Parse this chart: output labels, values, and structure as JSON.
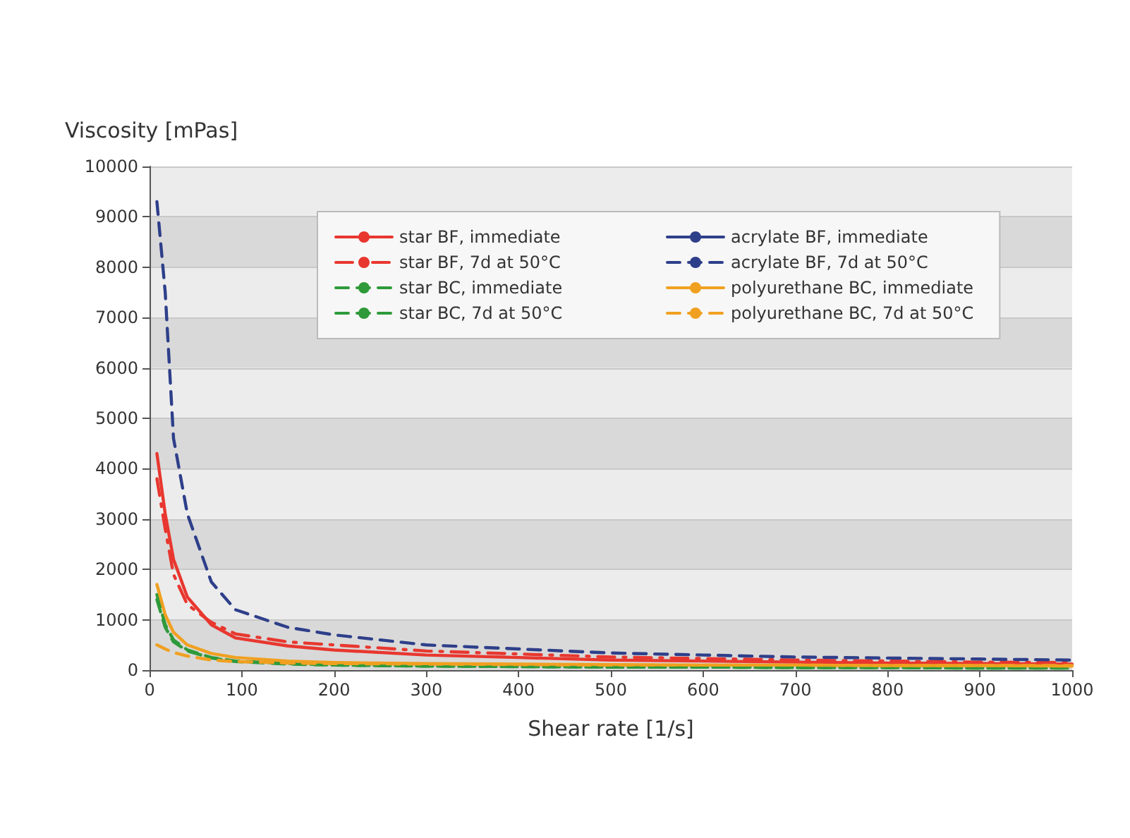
{
  "chart_data": {
    "type": "line",
    "xlabel": "Shear rate [1/s]",
    "ylabel": "Viscosity [mPas]",
    "x": [
      8,
      17,
      26,
      41,
      67,
      93,
      150,
      200,
      300,
      400,
      500,
      600,
      700,
      800,
      900,
      1000
    ],
    "series": [
      {
        "name": "star BF, immediate",
        "color": "#e8372f",
        "line_style": "solid",
        "values": [
          4300,
          3100,
          2200,
          1450,
          900,
          640,
          480,
          400,
          300,
          250,
          200,
          180,
          160,
          140,
          130,
          120
        ]
      },
      {
        "name": "star BF, 7d at 50°C",
        "color": "#e8372f",
        "line_style": "dashdot",
        "values": [
          3800,
          2800,
          1900,
          1300,
          950,
          720,
          560,
          500,
          380,
          320,
          260,
          230,
          200,
          180,
          160,
          150
        ]
      },
      {
        "name": "star BC, immediate",
        "color": "#2e9a3a",
        "line_style": "dashed",
        "values": [
          1500,
          900,
          600,
          400,
          250,
          180,
          130,
          100,
          80,
          70,
          60,
          60,
          50,
          50,
          40,
          40
        ]
      },
      {
        "name": "star BC, 7d at 50°C",
        "color": "#2e9a3a",
        "line_style": "dashed",
        "values": [
          1400,
          850,
          560,
          380,
          240,
          170,
          120,
          100,
          80,
          70,
          60,
          60,
          50,
          50,
          40,
          40
        ]
      },
      {
        "name": "acrylate BF, immediate",
        "color": "#2e3f8a",
        "line_style": "solid",
        "values": [
          null,
          null,
          null,
          null,
          null,
          null,
          null,
          null,
          null,
          null,
          null,
          null,
          null,
          null,
          null,
          null
        ]
      },
      {
        "name": "acrylate BF, 7d at 50°C",
        "color": "#2e3f8a",
        "line_style": "dashed",
        "values": [
          9300,
          7500,
          4600,
          3100,
          1750,
          1200,
          850,
          700,
          500,
          420,
          340,
          300,
          260,
          240,
          220,
          200
        ]
      },
      {
        "name": "polyurethane BC, immediate",
        "color": "#f0a020",
        "line_style": "solid",
        "values": [
          1700,
          1100,
          750,
          500,
          330,
          250,
          180,
          150,
          130,
          120,
          110,
          100,
          100,
          90,
          90,
          80
        ]
      },
      {
        "name": "polyurethane BC, 7d at 50°C",
        "color": "#f0a020",
        "line_style": "dashed",
        "values": [
          500,
          420,
          350,
          280,
          200,
          170,
          140,
          130,
          120,
          110,
          100,
          100,
          100,
          90,
          90,
          90
        ]
      }
    ],
    "xlim": [
      0,
      1000
    ],
    "xticks": [
      0,
      100,
      200,
      300,
      400,
      500,
      600,
      700,
      800,
      900,
      1000
    ],
    "ylim": [
      0,
      10000
    ],
    "yticks": [
      0,
      1000,
      2000,
      3000,
      4000,
      5000,
      6000,
      7000,
      8000,
      9000,
      10000
    ],
    "grid": "y",
    "legend": "top right",
    "marker": "none"
  }
}
